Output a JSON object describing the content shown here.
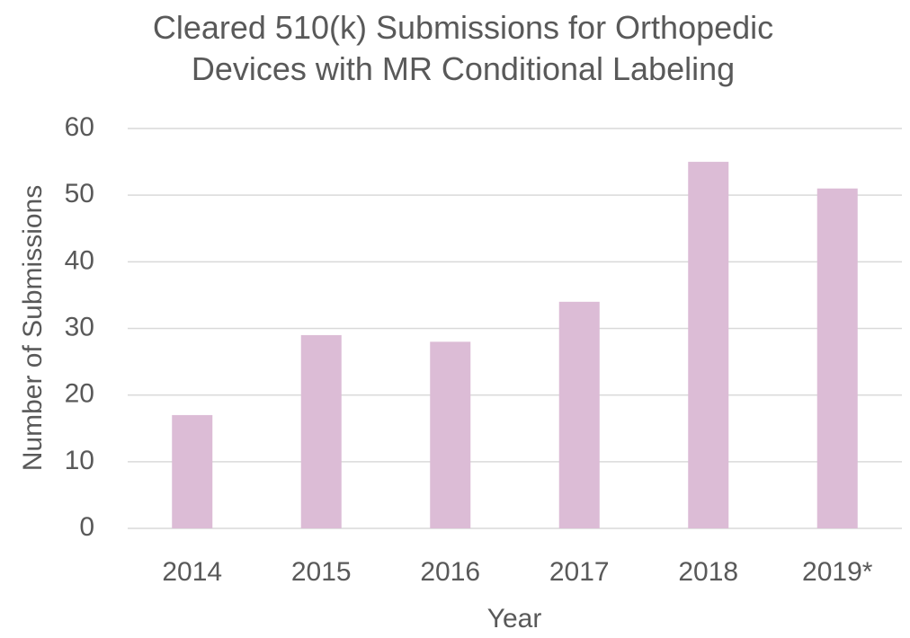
{
  "chart_data": {
    "type": "bar",
    "title": "Cleared 510(k) Submissions for Orthopedic Devices with MR Conditional Labeling",
    "x_label": "Year",
    "y_label": "Number of Submissions",
    "categories": [
      "2014",
      "2015",
      "2016",
      "2017",
      "2018",
      "2019*"
    ],
    "values": [
      17,
      29,
      28,
      34,
      55,
      51
    ],
    "color": "#dcbcd6",
    "ylim": [
      0,
      60
    ],
    "yticks": [
      0,
      10,
      20,
      30,
      40,
      50,
      60
    ],
    "grid": true
  }
}
